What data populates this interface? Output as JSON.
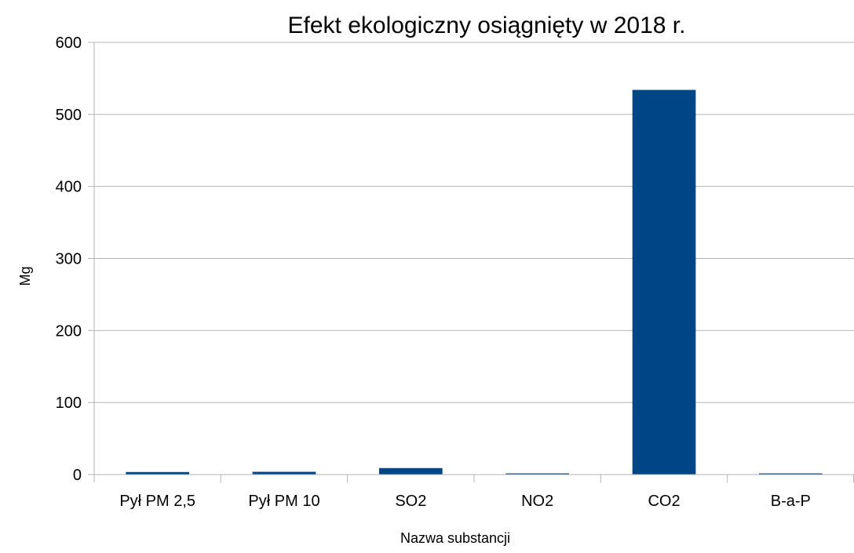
{
  "chart_data": {
    "type": "bar",
    "title": "Efekt ekologiczny osiągnięty w 2018 r.",
    "xlabel": "Nazwa substancji",
    "ylabel": "Mg",
    "categories": [
      "Pył PM 2,5",
      "Pył PM 10",
      "SO2",
      "NO2",
      "CO2",
      "B-a-P"
    ],
    "series": [
      {
        "values": [
          3.5,
          3.8,
          9.0,
          0.8,
          534.0,
          0.0005
        ],
        "color": "#004586"
      }
    ],
    "ylim": [
      0,
      600
    ],
    "yticks": [
      0,
      100,
      200,
      300,
      400,
      500,
      600
    ],
    "grid": true,
    "legend": "none"
  }
}
